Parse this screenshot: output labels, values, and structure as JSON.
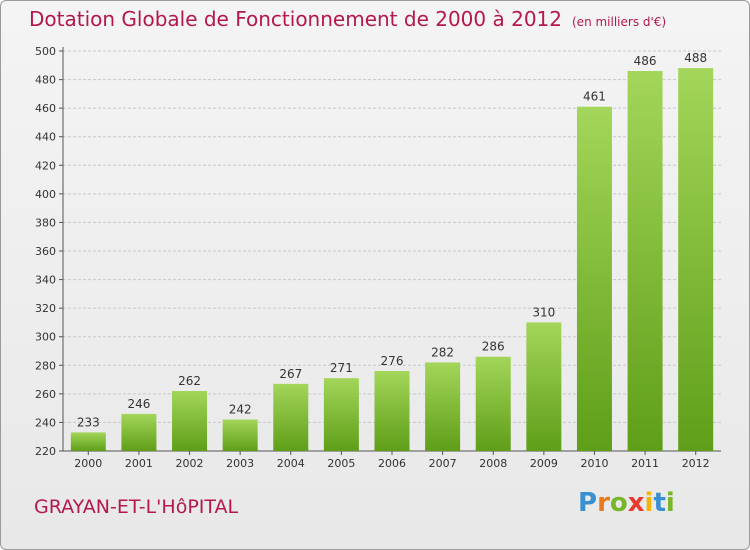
{
  "title": "Dotation Globale de Fonctionnement de 2000 à 2012",
  "subtitle": "(en milliers d'€)",
  "commune": "GRAYAN-ET-L'HôPITAL",
  "logo": {
    "letters": [
      "P",
      "r",
      "o",
      "x",
      "i",
      "t",
      "i"
    ],
    "colors": [
      "#3a8fd0",
      "#e87a1d",
      "#78b62a",
      "#e8392e",
      "#f4b400",
      "#3a8fd0",
      "#78b62a"
    ]
  },
  "colors": {
    "bar_top": "#a3d65a",
    "bar_bottom": "#5f9e18",
    "title": "#b5174f"
  },
  "chart_data": {
    "type": "bar",
    "categories": [
      "2000",
      "2001",
      "2002",
      "2003",
      "2004",
      "2005",
      "2006",
      "2007",
      "2008",
      "2009",
      "2010",
      "2011",
      "2012"
    ],
    "values": [
      233,
      246,
      262,
      242,
      267,
      271,
      276,
      282,
      286,
      310,
      461,
      486,
      488
    ],
    "ylim": [
      220,
      500
    ],
    "yticks": [
      "220",
      "240",
      "260",
      "280",
      "300",
      "320",
      "340",
      "360",
      "380",
      "400",
      "420",
      "440",
      "460",
      "480",
      "500"
    ],
    "grid": true
  }
}
